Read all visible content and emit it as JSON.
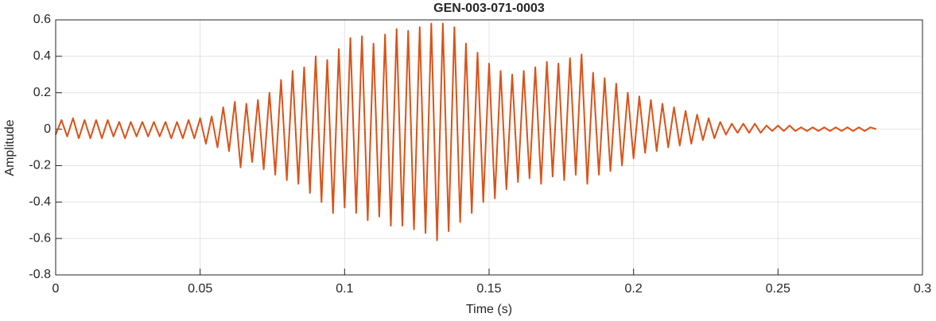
{
  "chart_data": {
    "type": "line",
    "title": "GEN-003-071-0003",
    "x_label": "Time (s)",
    "y_label": "Amplitude",
    "color": "#d95319",
    "grid": true,
    "xlim": [
      0,
      0.3
    ],
    "xticks": [
      0,
      0.05,
      0.1,
      0.15,
      0.2,
      0.25,
      0.3
    ],
    "ylim": [
      -0.8,
      0.6
    ],
    "yticks": [
      -0.8,
      -0.6,
      -0.4,
      -0.2,
      0,
      0.2,
      0.4,
      0.6
    ],
    "x": [
      0,
      0.002,
      0.004,
      0.006,
      0.008,
      0.01,
      0.012,
      0.014,
      0.016,
      0.018,
      0.02,
      0.022,
      0.024,
      0.026,
      0.028,
      0.03,
      0.032,
      0.034,
      0.036,
      0.038,
      0.04,
      0.042,
      0.044,
      0.046,
      0.048,
      0.05,
      0.052,
      0.054,
      0.056,
      0.058,
      0.06,
      0.062,
      0.064,
      0.066,
      0.068,
      0.07,
      0.072,
      0.074,
      0.076,
      0.078,
      0.08,
      0.082,
      0.084,
      0.086,
      0.088,
      0.09,
      0.092,
      0.094,
      0.096,
      0.098,
      0.1,
      0.102,
      0.104,
      0.106,
      0.108,
      0.11,
      0.112,
      0.114,
      0.116,
      0.118,
      0.12,
      0.122,
      0.124,
      0.126,
      0.128,
      0.13,
      0.132,
      0.134,
      0.136,
      0.138,
      0.14,
      0.142,
      0.144,
      0.146,
      0.148,
      0.15,
      0.152,
      0.154,
      0.156,
      0.158,
      0.16,
      0.162,
      0.164,
      0.166,
      0.168,
      0.17,
      0.172,
      0.174,
      0.176,
      0.178,
      0.18,
      0.182,
      0.184,
      0.186,
      0.188,
      0.19,
      0.192,
      0.194,
      0.196,
      0.198,
      0.2,
      0.202,
      0.204,
      0.206,
      0.208,
      0.21,
      0.212,
      0.214,
      0.216,
      0.218,
      0.22,
      0.222,
      0.224,
      0.226,
      0.228,
      0.23,
      0.232,
      0.234,
      0.236,
      0.238,
      0.24,
      0.242,
      0.244,
      0.246,
      0.248,
      0.25,
      0.252,
      0.254,
      0.256,
      0.258,
      0.26,
      0.262,
      0.264,
      0.266,
      0.268,
      0.27,
      0.272,
      0.274,
      0.276,
      0.278,
      0.28,
      0.282,
      0.284
    ],
    "values": [
      -0.03,
      0.05,
      -0.04,
      0.06,
      -0.05,
      0.05,
      -0.05,
      0.05,
      -0.05,
      0.05,
      -0.04,
      0.04,
      -0.05,
      0.04,
      -0.04,
      0.04,
      -0.04,
      0.04,
      -0.04,
      0.04,
      -0.05,
      0.04,
      -0.05,
      0.05,
      -0.05,
      0.06,
      -0.08,
      0.07,
      -0.1,
      0.12,
      -0.12,
      0.15,
      -0.21,
      0.14,
      -0.18,
      0.16,
      -0.22,
      0.2,
      -0.25,
      0.27,
      -0.28,
      0.32,
      -0.3,
      0.34,
      -0.35,
      0.4,
      -0.4,
      0.38,
      -0.46,
      0.44,
      -0.43,
      0.5,
      -0.46,
      0.51,
      -0.5,
      0.47,
      -0.48,
      0.52,
      -0.53,
      0.55,
      -0.53,
      0.54,
      -0.55,
      0.56,
      -0.57,
      0.58,
      -0.61,
      0.58,
      -0.56,
      0.56,
      -0.51,
      0.47,
      -0.46,
      0.42,
      -0.4,
      0.36,
      -0.38,
      0.32,
      -0.33,
      0.3,
      -0.29,
      0.32,
      -0.27,
      0.34,
      -0.3,
      0.37,
      -0.26,
      0.36,
      -0.28,
      0.39,
      -0.25,
      0.41,
      -0.3,
      0.31,
      -0.25,
      0.28,
      -0.23,
      0.25,
      -0.2,
      0.2,
      -0.16,
      0.18,
      -0.13,
      0.16,
      -0.12,
      0.14,
      -0.1,
      0.12,
      -0.09,
      0.1,
      -0.08,
      0.08,
      -0.06,
      0.06,
      -0.05,
      0.04,
      -0.03,
      0.03,
      -0.02,
      0.03,
      -0.02,
      0.03,
      -0.02,
      0.02,
      -0.01,
      0.02,
      -0.01,
      0.02,
      -0.01,
      0.01,
      -0.01,
      0.01,
      -0.01,
      0.01,
      -0.01,
      0.01,
      -0.01,
      0.01,
      -0.01,
      0.01,
      -0.01,
      0.01,
      0
    ]
  }
}
